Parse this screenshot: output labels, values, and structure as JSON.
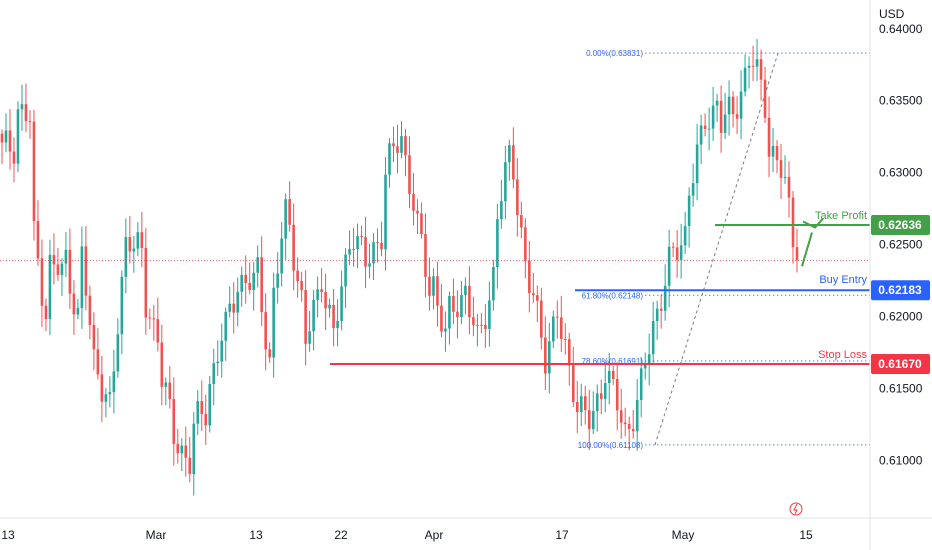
{
  "chart_data": {
    "type": "candlestick",
    "currency": "USD",
    "y_ticks": [
      0.64,
      0.635,
      0.63,
      0.625,
      0.62,
      0.615,
      0.61
    ],
    "y_tick_labels": [
      "0.64000",
      "0.63500",
      "0.63000",
      "0.62500",
      "0.62000",
      "0.61500",
      "0.61000"
    ],
    "ylim": [
      0.606,
      0.642
    ],
    "x_tick_labels": [
      "13",
      "Mar",
      "13",
      "22",
      "Apr",
      "17",
      "May",
      "15"
    ],
    "levels": {
      "take_profit": {
        "label": "Take Profit",
        "value": 0.62636,
        "value_text": "0.62636",
        "color": "#43a047"
      },
      "buy_entry": {
        "label": "Buy Entry",
        "value": 0.62183,
        "value_text": "0.62183",
        "color": "#2962ff"
      },
      "stop_loss": {
        "label": "Stop Loss",
        "value": 0.6167,
        "value_text": "0.61670",
        "color": "#f23645"
      }
    },
    "fibonacci": [
      {
        "label": "0.00%(0.63831)",
        "value": 0.63831
      },
      {
        "label": "61.80%(0.62148)",
        "value": 0.62148
      },
      {
        "label": "78.60%(0.61691)",
        "value": 0.61691
      },
      {
        "label": "100.00%(0.61108)",
        "value": 0.61108
      }
    ],
    "last_price": 0.6239,
    "anchors": [
      [
        0.6315,
        0.632
      ],
      [
        0.6345,
        0.6335
      ],
      [
        0.6255,
        0.6205
      ],
      [
        0.6235,
        0.623
      ],
      [
        0.624,
        0.62
      ],
      [
        0.624,
        0.617
      ],
      [
        0.6165,
        0.6135
      ],
      [
        0.616,
        0.6255
      ],
      [
        0.6258,
        0.624
      ],
      [
        0.6205,
        0.619
      ],
      [
        0.616,
        0.6115
      ],
      [
        0.6112,
        0.61
      ],
      [
        0.6122,
        0.6135
      ],
      [
        0.6155,
        0.6185
      ],
      [
        0.619,
        0.6225
      ],
      [
        0.6225,
        0.6222
      ],
      [
        0.623,
        0.617
      ],
      [
        0.6215,
        0.627
      ],
      [
        0.6265,
        0.621
      ],
      [
        0.618,
        0.6215
      ],
      [
        0.623,
        0.6185
      ],
      [
        0.62,
        0.6255
      ],
      [
        0.626,
        0.6235
      ],
      [
        0.624,
        0.626
      ],
      [
        0.63,
        0.632
      ],
      [
        0.6325,
        0.628
      ],
      [
        0.626,
        0.622
      ],
      [
        0.6225,
        0.6185
      ],
      [
        0.62,
        0.6215
      ],
      [
        0.622,
        0.618
      ],
      [
        0.619,
        0.623
      ],
      [
        0.627,
        0.631
      ],
      [
        0.6305,
        0.6235
      ],
      [
        0.622,
        0.619
      ],
      [
        0.6175,
        0.62
      ],
      [
        0.6185,
        0.6155
      ],
      [
        0.614,
        0.6125
      ],
      [
        0.613,
        0.6165
      ],
      [
        0.6155,
        0.6128
      ],
      [
        0.612,
        0.614
      ],
      [
        0.615,
        0.6195
      ],
      [
        0.6205,
        0.6235
      ],
      [
        0.624,
        0.626
      ],
      [
        0.629,
        0.632
      ],
      [
        0.6335,
        0.635
      ],
      [
        0.6335,
        0.634
      ],
      [
        0.635,
        0.6378
      ],
      [
        0.6375,
        0.635
      ],
      [
        0.632,
        0.63
      ],
      [
        0.629,
        0.6239
      ]
    ]
  }
}
